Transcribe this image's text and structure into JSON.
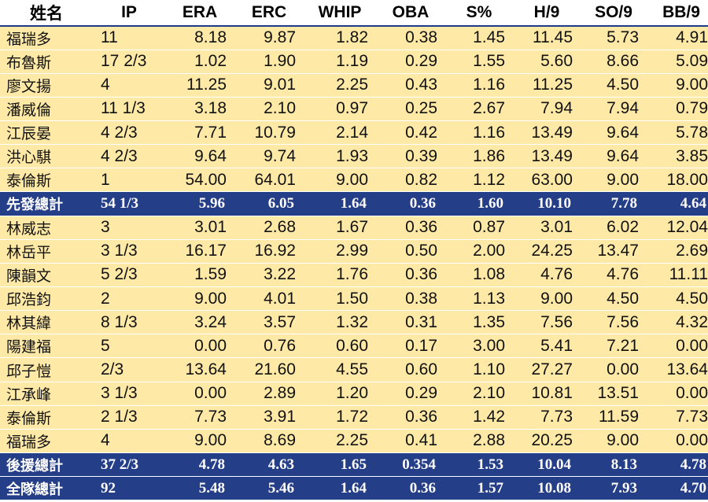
{
  "headers": [
    "姓名",
    "IP",
    "ERA",
    "ERC",
    "WHIP",
    "OBA",
    "S%",
    "H/9",
    "SO/9",
    "BB/9"
  ],
  "rows": [
    {
      "type": "data",
      "cells": [
        "福瑞多",
        "11",
        "8.18",
        "9.87",
        "1.82",
        "0.38",
        "1.45",
        "11.45",
        "5.73",
        "4.91"
      ]
    },
    {
      "type": "data",
      "cells": [
        "布魯斯",
        "17 2/3",
        "1.02",
        "1.90",
        "1.19",
        "0.29",
        "1.55",
        "5.60",
        "8.66",
        "5.09"
      ]
    },
    {
      "type": "data",
      "cells": [
        "廖文揚",
        "4",
        "11.25",
        "9.01",
        "2.25",
        "0.43",
        "1.16",
        "11.25",
        "4.50",
        "9.00"
      ]
    },
    {
      "type": "data",
      "cells": [
        "潘威倫",
        "11 1/3",
        "3.18",
        "2.10",
        "0.97",
        "0.25",
        "2.67",
        "7.94",
        "7.94",
        "0.79"
      ]
    },
    {
      "type": "data",
      "cells": [
        "江辰晏",
        "4 2/3",
        "7.71",
        "10.79",
        "2.14",
        "0.42",
        "1.16",
        "13.49",
        "9.64",
        "5.78"
      ]
    },
    {
      "type": "data",
      "cells": [
        "洪心騏",
        "4 2/3",
        "9.64",
        "9.74",
        "1.93",
        "0.39",
        "1.86",
        "13.49",
        "9.64",
        "3.85"
      ]
    },
    {
      "type": "data",
      "cells": [
        "泰倫斯",
        "1",
        "54.00",
        "64.01",
        "9.00",
        "0.82",
        "1.12",
        "63.00",
        "9.00",
        "18.00"
      ]
    },
    {
      "type": "total",
      "cells": [
        "先發總計",
        "54 1/3",
        "5.96",
        "6.05",
        "1.64",
        "0.36",
        "1.60",
        "10.10",
        "7.78",
        "4.64"
      ]
    },
    {
      "type": "data",
      "cells": [
        "林威志",
        "3",
        "3.01",
        "2.68",
        "1.67",
        "0.36",
        "0.87",
        "3.01",
        "6.02",
        "12.04"
      ]
    },
    {
      "type": "data",
      "cells": [
        "林岳平",
        "3 1/3",
        "16.17",
        "16.92",
        "2.99",
        "0.50",
        "2.00",
        "24.25",
        "13.47",
        "2.69"
      ]
    },
    {
      "type": "data",
      "cells": [
        "陳韻文",
        "5 2/3",
        "1.59",
        "3.22",
        "1.76",
        "0.36",
        "1.08",
        "4.76",
        "4.76",
        "11.11"
      ]
    },
    {
      "type": "data",
      "cells": [
        "邱浩鈞",
        "2",
        "9.00",
        "4.01",
        "1.50",
        "0.38",
        "1.13",
        "9.00",
        "4.50",
        "4.50"
      ]
    },
    {
      "type": "data",
      "cells": [
        "林其緯",
        "8 1/3",
        "3.24",
        "3.57",
        "1.32",
        "0.31",
        "1.35",
        "7.56",
        "7.56",
        "4.32"
      ]
    },
    {
      "type": "data",
      "cells": [
        "陽建福",
        "5",
        "0.00",
        "0.76",
        "0.60",
        "0.17",
        "3.00",
        "5.41",
        "7.21",
        "0.00"
      ]
    },
    {
      "type": "data",
      "cells": [
        "邱子愷",
        "2/3",
        "13.64",
        "21.60",
        "4.55",
        "0.60",
        "1.10",
        "27.27",
        "0.00",
        "13.64"
      ]
    },
    {
      "type": "data",
      "cells": [
        "江承峰",
        "3 1/3",
        "0.00",
        "2.89",
        "1.20",
        "0.29",
        "2.10",
        "10.81",
        "13.51",
        "0.00"
      ]
    },
    {
      "type": "data",
      "cells": [
        "泰倫斯",
        "2 1/3",
        "7.73",
        "3.91",
        "1.72",
        "0.36",
        "1.42",
        "7.73",
        "11.59",
        "7.73"
      ]
    },
    {
      "type": "data",
      "cells": [
        "福瑞多",
        "4",
        "9.00",
        "8.69",
        "2.25",
        "0.41",
        "2.88",
        "20.25",
        "9.00",
        "0.00"
      ]
    },
    {
      "type": "total",
      "cells": [
        "後援總計",
        "37 2/3",
        "4.78",
        "4.63",
        "1.65",
        "0.354",
        "1.53",
        "10.04",
        "8.13",
        "4.78"
      ]
    },
    {
      "type": "total",
      "cells": [
        "全隊總計",
        "92",
        "5.48",
        "5.46",
        "1.64",
        "0.36",
        "1.57",
        "10.08",
        "7.93",
        "4.70"
      ]
    }
  ],
  "colors": {
    "data_row_bg": "#ffe9a6",
    "total_row_bg": "#253e88",
    "total_row_text": "#ffffff"
  }
}
